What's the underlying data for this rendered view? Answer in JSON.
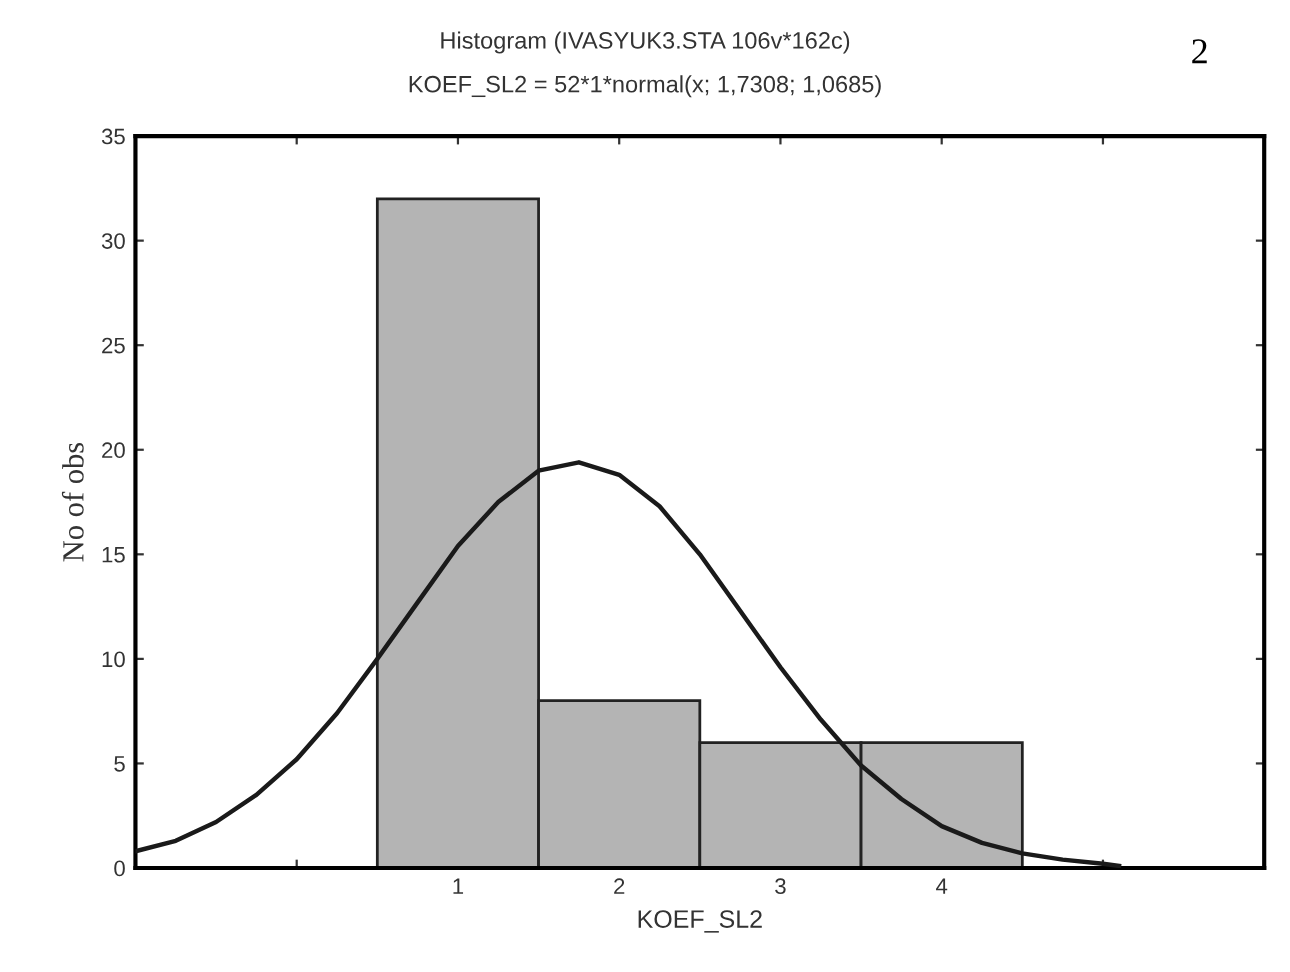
{
  "chart_data": {
    "type": "histogram",
    "title": "Histogram (IVASYUK3.STA 106v*162c)",
    "subtitle": "KOEF_SL2 = 52*1*normal(x; 1,7308; 1,0685)",
    "xlabel": "KOEF_SL2",
    "ylabel": "No of obs",
    "annotations": [
      "2"
    ],
    "series": [
      {
        "color": "#b4b4b4",
        "bins": [
          0.5,
          1.5,
          2.5,
          3.5,
          4.5
        ],
        "values": [
          32,
          8,
          6,
          6
        ]
      },
      {
        "type": "line",
        "color": "#1a1a1a",
        "x": [
          -1,
          -0.75,
          -0.5,
          -0.25,
          0,
          0.25,
          0.5,
          0.75,
          1,
          1.25,
          1.5,
          1.75,
          2,
          2.25,
          2.5,
          2.75,
          3,
          3.25,
          3.5,
          3.75,
          4,
          4.25,
          4.5,
          4.75,
          5,
          5.1
        ],
        "values": [
          0.8,
          1.3,
          2.2,
          3.5,
          5.2,
          7.4,
          10.0,
          12.7,
          15.4,
          17.5,
          19.0,
          19.4,
          18.8,
          17.3,
          15.0,
          12.3,
          9.6,
          7.1,
          4.9,
          3.3,
          2.0,
          1.2,
          0.7,
          0.4,
          0.2,
          0.1
        ]
      }
    ],
    "xlim": [
      -1,
      6
    ],
    "xticks": [
      {
        "value": 0,
        "label": null
      },
      1,
      2,
      3,
      4,
      {
        "value": 5,
        "label": null
      }
    ],
    "ylim": [
      0,
      35
    ],
    "yticks": [
      0,
      5,
      10,
      15,
      20,
      25,
      30,
      35
    ],
    "grid": false
  }
}
